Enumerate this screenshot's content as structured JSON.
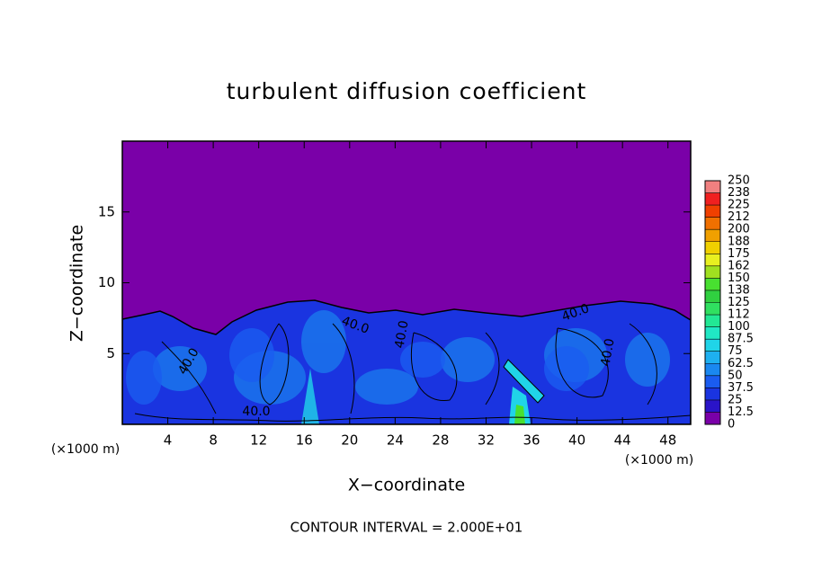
{
  "chart_data": {
    "type": "contour",
    "title": "turbulent diffusion coefficient",
    "x_label": "X−coordinate",
    "y_label": "Z−coordinate",
    "x_unit_left": "(×1000 m)",
    "x_unit_right": "(×1000 m)",
    "footer": "CONTOUR INTERVAL = 2.000E+01",
    "xlim": [
      0,
      50
    ],
    "xticks": [
      4,
      8,
      12,
      16,
      20,
      24,
      28,
      32,
      36,
      40,
      44,
      48
    ],
    "ylim": [
      0,
      20
    ],
    "yticks": [
      5,
      10,
      15
    ],
    "contour_labels": [
      "40.0",
      "40.0",
      "40.0",
      "40.0",
      "40.0",
      "40.0"
    ],
    "colorbar": {
      "levels": [
        0,
        12.5,
        25,
        37.5,
        50,
        62.5,
        75,
        87.5,
        100,
        {
          "value": 112.5,
          "label": "112"
        },
        125,
        {
          "value": 137.5,
          "label": "138"
        },
        150,
        {
          "value": 162.5,
          "label": "162"
        },
        175,
        {
          "value": 187.5,
          "label": "188"
        },
        200,
        {
          "value": 212.5,
          "label": "212"
        },
        225,
        {
          "value": 237.5,
          "label": "238"
        },
        250
      ],
      "colors": [
        "#7a00a8",
        "#2a14c8",
        "#1a34e0",
        "#1a5cf0",
        "#1a88f0",
        "#1eb0f0",
        "#20d4e8",
        "#20e8c4",
        "#22e894",
        "#30e060",
        "#30d040",
        "#48e030",
        "#a0e020",
        "#e8f020",
        "#f0d000",
        "#f0a000",
        "#f07000",
        "#f04000",
        "#f02020",
        "#f08080"
      ]
    }
  }
}
